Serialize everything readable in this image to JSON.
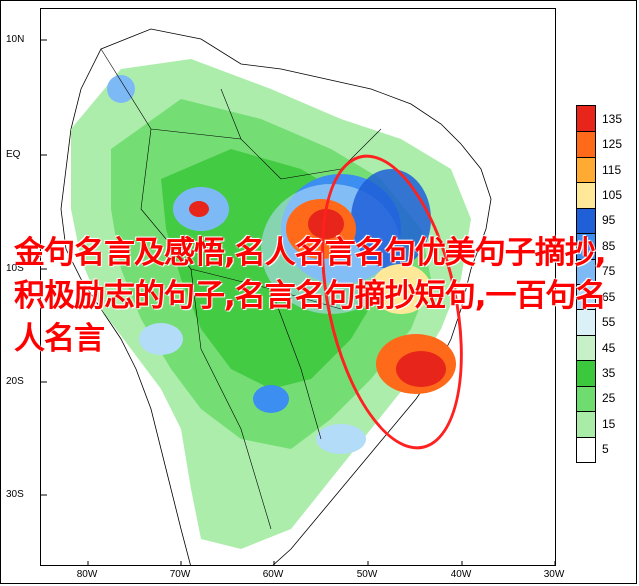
{
  "map": {
    "latitude_labels": [
      "10N",
      "EQ",
      "10S",
      "20S",
      "30S"
    ],
    "longitude_labels": [
      "80W",
      "70W",
      "60W",
      "50W",
      "40W",
      "30W"
    ]
  },
  "colorbar": {
    "values": [
      "135",
      "125",
      "115",
      "105",
      "95",
      "85",
      "75",
      "65",
      "55",
      "45",
      "35",
      "25",
      "15",
      "5"
    ],
    "colors": [
      "#e8251a",
      "#ff6a1a",
      "#ffaa33",
      "#ffe999",
      "#1f5fd8",
      "#3c8ef0",
      "#7dbaf5",
      "#b2dcf8",
      "#dcf0f8",
      "#c8f0c8",
      "#3cc83c",
      "#6edc6e",
      "#a8eca8",
      "#ffffff"
    ]
  },
  "overlay": {
    "caption": "金句名言及感悟,名人名言名句优美句子摘抄,积极励志的句子,名言名句摘抄短句,一百句名人名言"
  },
  "colors": {
    "highlight_circle": "#ff2020",
    "caption_text": "#ff0000"
  }
}
